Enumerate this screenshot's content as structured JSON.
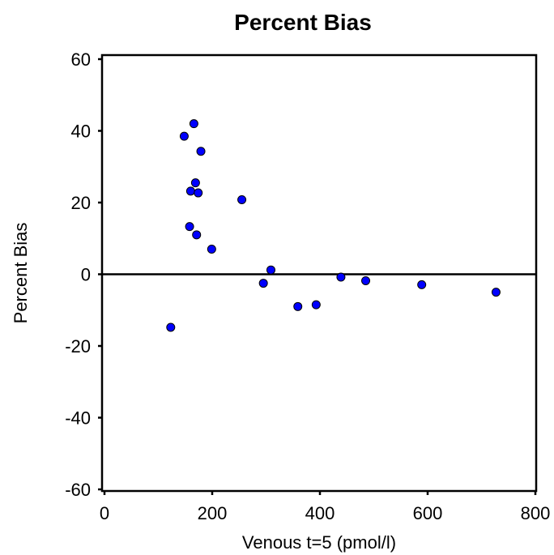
{
  "chart_data": {
    "type": "scatter",
    "title": "Percent Bias",
    "xlabel": "Venous t=5 (pmol/l)",
    "ylabel": "Percent Bias",
    "xlim": [
      0,
      800
    ],
    "ylim": [
      -60,
      60
    ],
    "x_ticks": [
      0,
      200,
      400,
      600,
      800
    ],
    "y_ticks": [
      -60,
      -40,
      -20,
      0,
      20,
      40,
      60
    ],
    "grid": false,
    "reference_line": 0,
    "point_color": "#0000ff",
    "series": [
      {
        "points": [
          {
            "x": 123,
            "y": -14.8
          },
          {
            "x": 148,
            "y": 38.5
          },
          {
            "x": 158,
            "y": 13.3
          },
          {
            "x": 160,
            "y": 23.2
          },
          {
            "x": 166,
            "y": 42.0
          },
          {
            "x": 169,
            "y": 25.5
          },
          {
            "x": 171,
            "y": 11.0
          },
          {
            "x": 174,
            "y": 22.7
          },
          {
            "x": 179,
            "y": 34.3
          },
          {
            "x": 199,
            "y": 7.0
          },
          {
            "x": 255,
            "y": 20.8
          },
          {
            "x": 295,
            "y": -2.5
          },
          {
            "x": 309,
            "y": 1.2
          },
          {
            "x": 359,
            "y": -9.0
          },
          {
            "x": 393,
            "y": -8.5
          },
          {
            "x": 439,
            "y": -0.8
          },
          {
            "x": 485,
            "y": -1.8
          },
          {
            "x": 589,
            "y": -2.9
          },
          {
            "x": 727,
            "y": -5.0
          }
        ]
      }
    ]
  }
}
